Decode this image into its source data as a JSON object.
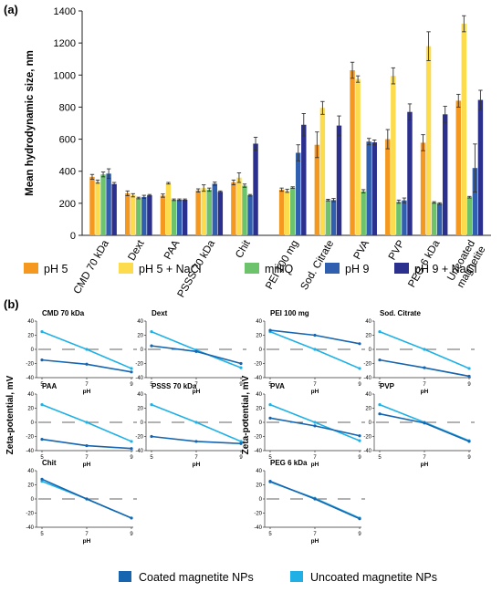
{
  "panel_a_label": "(a)",
  "panel_b_label": "(b)",
  "colors": {
    "ph5": "#f5981f",
    "ph5_nacl": "#fcdc4d",
    "milliq": "#6cc36c",
    "ph9": "#2f5fae",
    "ph9_nacl": "#2b2f8e",
    "coated": "#1565b0",
    "uncoated": "#1fb1e6"
  },
  "chart_data": [
    {
      "type": "bar",
      "panel": "(a)",
      "ylabel": "Mean hydrodynamic size, nm",
      "xlabel": "",
      "ylim": [
        0,
        1400
      ],
      "yticks": [
        0,
        200,
        400,
        600,
        800,
        1000,
        1200,
        1400
      ],
      "legend_position": "bottom",
      "categories": [
        "CMD 70 kDa",
        "Dext",
        "PAA",
        "PSSS 70 kDa",
        "Chit",
        "PEI 100 mg",
        "Sod. Citrate",
        "PVA",
        "PVP",
        "PEG 6 kDa",
        "Uncoated magnetite"
      ],
      "series": [
        {
          "name": "pH 5",
          "color": "#f5981f",
          "values": [
            365,
            262,
            248,
            280,
            330,
            285,
            565,
            1030,
            600,
            578,
            840
          ],
          "errors": [
            15,
            15,
            10,
            10,
            15,
            10,
            80,
            50,
            60,
            50,
            40
          ]
        },
        {
          "name": "pH 5 + NaCl",
          "color": "#fcdc4d",
          "values": [
            335,
            250,
            325,
            295,
            360,
            278,
            795,
            975,
            995,
            1180,
            1320
          ],
          "errors": [
            10,
            10,
            5,
            20,
            30,
            10,
            40,
            20,
            50,
            90,
            50
          ]
        },
        {
          "name": "milliQ",
          "color": "#6cc36c",
          "values": [
            380,
            233,
            222,
            285,
            310,
            298,
            220,
            275,
            210,
            205,
            238
          ],
          "errors": [
            15,
            5,
            5,
            10,
            10,
            5,
            5,
            10,
            10,
            5,
            5
          ]
        },
        {
          "name": "pH 9",
          "color": "#2f5fae",
          "values": [
            385,
            240,
            222,
            322,
            250,
            515,
            220,
            585,
            218,
            198,
            420
          ],
          "errors": [
            30,
            10,
            5,
            10,
            5,
            50,
            10,
            20,
            15,
            5,
            150
          ]
        },
        {
          "name": "pH 9 + NaCl",
          "color": "#2b2f8e",
          "values": [
            320,
            250,
            222,
            272,
            572,
            690,
            685,
            580,
            770,
            755,
            845
          ],
          "errors": [
            10,
            5,
            5,
            5,
            40,
            70,
            60,
            15,
            50,
            50,
            60
          ]
        }
      ]
    },
    {
      "type": "line",
      "panel": "(b)",
      "ylabel": "Zeta-potential, mV",
      "xlabel": "pH",
      "x": [
        5,
        7,
        9
      ],
      "ylim": [
        -40,
        40
      ],
      "yticks": [
        -40,
        -20,
        0,
        20,
        40
      ],
      "legend_position": "bottom",
      "series_names": [
        "Coated magnetite NPs",
        "Uncoated magnetite NPs"
      ],
      "panels": [
        {
          "title": "CMD 70 kDa",
          "coated": [
            -15,
            -21,
            -32
          ],
          "uncoated": [
            25,
            0,
            -27
          ]
        },
        {
          "title": "Dext",
          "coated": [
            5,
            -3,
            -20
          ],
          "uncoated": [
            25,
            -1,
            -26
          ]
        },
        {
          "title": "PEI 100 mg",
          "coated": [
            27,
            20,
            8
          ],
          "uncoated": [
            25,
            0,
            -27
          ]
        },
        {
          "title": "Sod. Citrate",
          "coated": [
            -15,
            -26,
            -38
          ],
          "uncoated": [
            25,
            0,
            -27
          ]
        },
        {
          "title": "PAA",
          "coated": [
            -24,
            -33,
            -37
          ],
          "uncoated": [
            25,
            0,
            -27
          ]
        },
        {
          "title": "PSSS 70 kDa",
          "coated": [
            -20,
            -27,
            -30
          ],
          "uncoated": [
            25,
            0,
            -27
          ]
        },
        {
          "title": "PVA",
          "coated": [
            6,
            -5,
            -19
          ],
          "uncoated": [
            25,
            0,
            -26
          ]
        },
        {
          "title": "PVP",
          "coated": [
            12,
            -1,
            -27
          ],
          "uncoated": [
            25,
            0,
            -26
          ]
        },
        {
          "title": "Chit",
          "coated": [
            28,
            0,
            -27
          ],
          "uncoated": [
            25,
            0,
            -27
          ]
        },
        {
          "title": "PEG 6 kDa",
          "coated": [
            25,
            0,
            -28
          ],
          "uncoated": [
            24,
            1,
            -27
          ]
        }
      ]
    }
  ]
}
